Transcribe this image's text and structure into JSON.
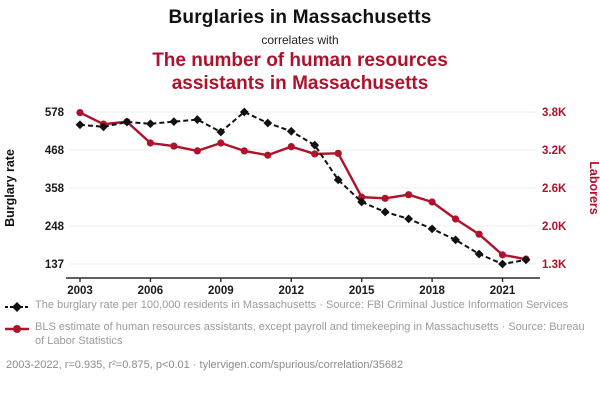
{
  "header": {
    "title": "Burglaries in Massachusetts",
    "subtitle": "correlates with",
    "correlated_title": "The number of human resources assistants in Massachusetts"
  },
  "colors": {
    "accent_red": "#b0122c",
    "series_black": "#111111",
    "legend_gray": "#9b9b9b"
  },
  "legend": {
    "items": [
      {
        "marker": "black-dashed-line-diamond",
        "text": "The burglary rate per 100,000 residents in Massachusetts · Source: FBI Criminal Justice Information Services"
      },
      {
        "marker": "red-line-circle",
        "text": "BLS estimate of human resources assistants, except payroll and timekeeping in Massachusetts · Source: Bureau of Labor Statistics"
      }
    ]
  },
  "footer": {
    "text": "2003-2022, r=0.935, r²=0.875, p<0.01 · tylervigen.com/spurious/correlation/35682"
  },
  "chart_data": {
    "type": "line",
    "title": "Burglaries in Massachusetts correlates with The number of human resources assistants in Massachusetts",
    "x": [
      2003,
      2004,
      2005,
      2006,
      2007,
      2008,
      2009,
      2010,
      2011,
      2012,
      2013,
      2014,
      2015,
      2016,
      2017,
      2018,
      2019,
      2020,
      2021,
      2022
    ],
    "x_ticks": [
      2003,
      2006,
      2009,
      2012,
      2015,
      2018,
      2021
    ],
    "series": [
      {
        "name": "The burglary rate per 100,000 residents in Massachusetts",
        "axis": "left",
        "color": "#111111",
        "style": "dashed-line-diamond-markers",
        "values": [
          541,
          535,
          549,
          544,
          550,
          556,
          520,
          578,
          546,
          522,
          482,
          381,
          317,
          288,
          268,
          239,
          207,
          166,
          137,
          149
        ]
      },
      {
        "name": "BLS estimate of human resources assistants in Massachusetts",
        "axis": "right",
        "color": "#b0122c",
        "style": "solid-line-circle-markers",
        "values": [
          3790,
          3600,
          3640,
          3290,
          3240,
          3160,
          3290,
          3160,
          3090,
          3230,
          3110,
          3120,
          2400,
          2380,
          2440,
          2320,
          2040,
          1790,
          1450,
          1380
        ]
      }
    ],
    "left_axis": {
      "label": "Burglary rate",
      "min": 137,
      "max": 578,
      "tick_labels": [
        "137",
        "248",
        "358",
        "468",
        "578"
      ]
    },
    "right_axis": {
      "label": "Laborers",
      "min": 1300,
      "max": 3800,
      "tick_labels": [
        "1.3K",
        "2.0K",
        "2.6K",
        "3.2K",
        "3.8K"
      ]
    },
    "grid": "horizontal-light",
    "legend_position": "below"
  }
}
